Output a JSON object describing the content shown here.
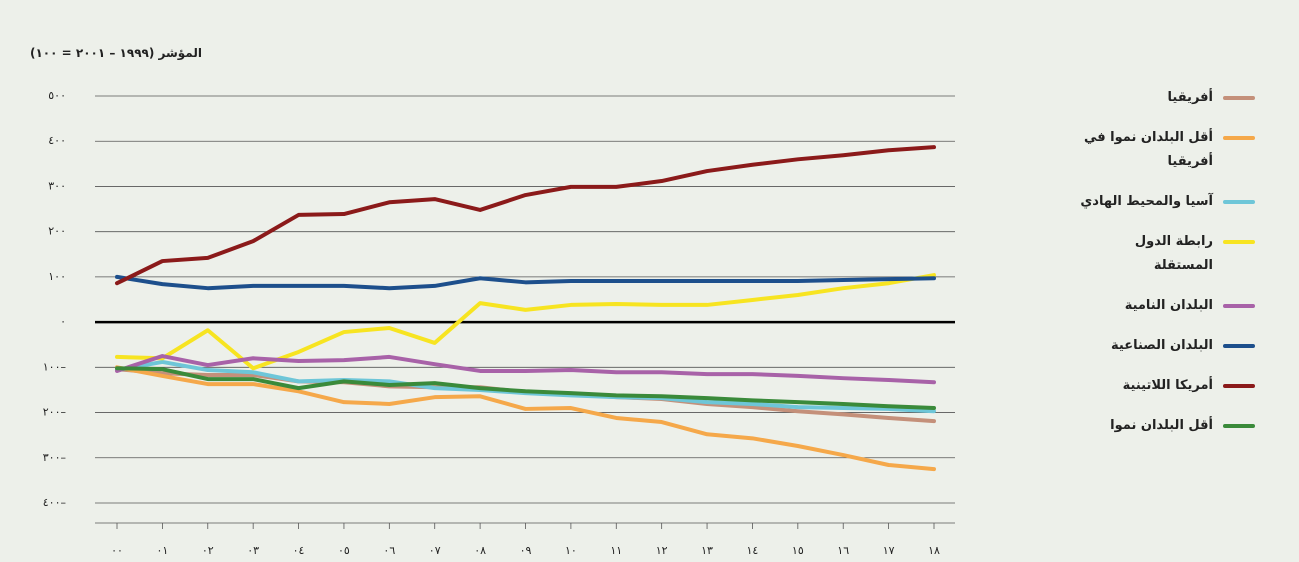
{
  "chart_data": {
    "type": "line",
    "y_axis_label": "المؤشر (١٩٩٩ – ٢٠٠١ = ١٠٠)",
    "categories": [
      "٠٠",
      "٠١",
      "٠٢",
      "٠٣",
      "٠٤",
      "٠٥",
      "٠٦",
      "٠٧",
      "٠٨",
      "٠٩",
      "١٠",
      "١١",
      "١٢",
      "١٣",
      "١٤",
      "١٥",
      "١٦",
      "١٧",
      "١٨"
    ],
    "ylim": [
      -400,
      500
    ],
    "yticks": [
      {
        "value": 500,
        "label": "٥٠٠"
      },
      {
        "value": 400,
        "label": "٤٠٠"
      },
      {
        "value": 300,
        "label": "٣٠٠"
      },
      {
        "value": 200,
        "label": "٢٠٠"
      },
      {
        "value": 100,
        "label": "١٠٠"
      },
      {
        "value": 0,
        "label": "٠"
      },
      {
        "value": -100,
        "label": "١٠٠–"
      },
      {
        "value": -200,
        "label": "٢٠٠–"
      },
      {
        "value": -300,
        "label": "٣٠٠–"
      },
      {
        "value": -400,
        "label": "٤٠٠–"
      }
    ],
    "grid": true,
    "legend": "right",
    "series": [
      {
        "name": "أفريقيا",
        "color": "#c4907a",
        "values": [
          -104,
          -113,
          -117,
          -117,
          -131,
          -133,
          -142,
          -144,
          -144,
          -155,
          -159,
          -166,
          -170,
          -181,
          -188,
          -197,
          -204,
          -212,
          -219
        ]
      },
      {
        "name": "أقل البلدان نموا في أفريقيا",
        "color": "#f5a84a",
        "values": [
          -100,
          -119,
          -137,
          -137,
          -153,
          -177,
          -181,
          -166,
          -164,
          -192,
          -190,
          -212,
          -221,
          -248,
          -257,
          -274,
          -294,
          -316,
          -325
        ]
      },
      {
        "name": "آسيا والمحيط الهادي",
        "color": "#6ec6d8",
        "values": [
          -106,
          -88,
          -106,
          -111,
          -131,
          -128,
          -131,
          -146,
          -150,
          -157,
          -162,
          -166,
          -168,
          -177,
          -181,
          -188,
          -190,
          -192,
          -197
        ]
      },
      {
        "name": "رابطة الدول المستقلة",
        "color": "#f7e421",
        "values": [
          -77,
          -80,
          -18,
          -102,
          -66,
          -22,
          -13,
          -46,
          42,
          27,
          38,
          40,
          38,
          38,
          49,
          60,
          75,
          86,
          104
        ]
      },
      {
        "name": "البلدان النامية",
        "color": "#a862a8",
        "values": [
          -108,
          -75,
          -95,
          -80,
          -86,
          -84,
          -77,
          -93,
          -108,
          -108,
          -106,
          -111,
          -111,
          -115,
          -115,
          -119,
          -124,
          -128,
          -133
        ]
      },
      {
        "name": "البلدان الصناعية",
        "color": "#1d4f8c",
        "values": [
          100,
          84,
          75,
          80,
          80,
          80,
          75,
          80,
          97,
          88,
          91,
          91,
          91,
          91,
          91,
          91,
          93,
          95,
          97
        ]
      },
      {
        "name": "أمريكا اللاتينية",
        "color": "#8b1a1a",
        "values": [
          86,
          135,
          142,
          179,
          237,
          239,
          265,
          272,
          248,
          281,
          299,
          299,
          312,
          334,
          348,
          360,
          369,
          380,
          387
        ]
      },
      {
        "name": "أقل البلدان نموا",
        "color": "#3a8a3a",
        "values": [
          -102,
          -104,
          -126,
          -126,
          -146,
          -131,
          -139,
          -135,
          -146,
          -153,
          -157,
          -162,
          -164,
          -168,
          -173,
          -177,
          -181,
          -186,
          -190
        ]
      }
    ]
  }
}
